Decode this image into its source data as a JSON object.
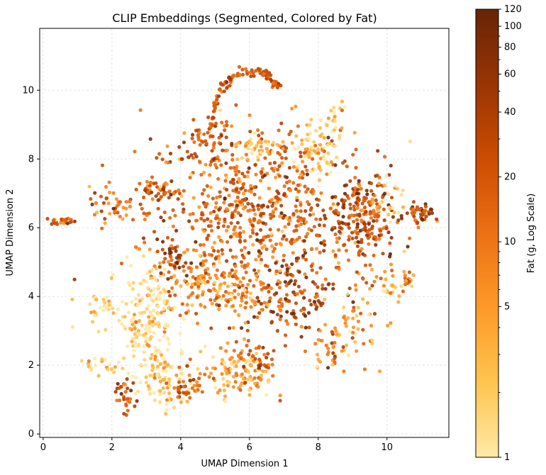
{
  "chart_data": {
    "type": "scatter",
    "title": "CLIP Embeddings (Segmented, Colored by Fat)",
    "xlabel": "UMAP Dimension 1",
    "ylabel": "UMAP Dimension 2",
    "xlim": [
      -0.1,
      11.8
    ],
    "ylim": [
      -0.1,
      11.8
    ],
    "x_ticks": [
      0,
      2,
      4,
      6,
      8,
      10
    ],
    "y_ticks": [
      0,
      2,
      4,
      6,
      8,
      10
    ],
    "grid": true,
    "colorbar": {
      "label": "Fat (g, Log Scale)",
      "scale": "log",
      "range": [
        1,
        120
      ],
      "tick_labels": [
        1,
        5,
        10,
        20,
        40,
        60,
        80,
        100,
        120
      ],
      "colors": [
        "#FFE9A8",
        "#FEC44F",
        "#FE9929",
        "#EC7014",
        "#CC4C02",
        "#993404",
        "#662506"
      ]
    },
    "clusters": [
      {
        "x": 6.0,
        "y": 6.5,
        "sx": 1.5,
        "sy": 1.3,
        "fat": 15,
        "n": 700
      },
      {
        "x": 9.3,
        "y": 6.2,
        "sx": 0.5,
        "sy": 0.7,
        "fat": 25,
        "n": 220
      },
      {
        "x": 7.3,
        "y": 4.0,
        "sx": 0.6,
        "sy": 0.6,
        "fat": 35,
        "n": 120
      },
      {
        "x": 5.0,
        "y": 4.3,
        "sx": 0.9,
        "sy": 0.5,
        "fat": 7,
        "n": 180
      },
      {
        "x": 3.0,
        "y": 3.4,
        "sx": 0.4,
        "sy": 0.8,
        "fat": 1.3,
        "n": 160
      },
      {
        "x": 3.5,
        "y": 1.6,
        "sx": 0.4,
        "sy": 0.4,
        "fat": 1.5,
        "n": 90
      },
      {
        "x": 5.7,
        "y": 1.8,
        "sx": 0.5,
        "sy": 0.4,
        "fat": 4,
        "n": 120
      },
      {
        "x": 2.4,
        "y": 1.1,
        "sx": 0.15,
        "sy": 0.25,
        "fat": 30,
        "n": 30
      },
      {
        "x": 4.2,
        "y": 1.4,
        "sx": 0.2,
        "sy": 0.3,
        "fat": 20,
        "n": 40
      },
      {
        "x": 3.3,
        "y": 7.1,
        "sx": 0.3,
        "sy": 0.15,
        "fat": 20,
        "n": 45
      },
      {
        "x": 3.7,
        "y": 5.1,
        "sx": 0.2,
        "sy": 0.2,
        "fat": 40,
        "n": 30
      },
      {
        "x": 2.0,
        "y": 6.7,
        "sx": 0.35,
        "sy": 0.3,
        "fat": 10,
        "n": 40
      },
      {
        "x": 0.6,
        "y": 6.2,
        "sx": 0.2,
        "sy": 0.05,
        "fat": 20,
        "n": 25
      },
      {
        "x": 11.0,
        "y": 6.4,
        "sx": 0.2,
        "sy": 0.15,
        "fat": 25,
        "n": 40
      },
      {
        "x": 10.6,
        "y": 4.5,
        "sx": 0.1,
        "sy": 0.15,
        "fat": 15,
        "n": 15
      },
      {
        "x": 7.9,
        "y": 8.2,
        "sx": 0.4,
        "sy": 0.3,
        "fat": 2,
        "n": 60
      },
      {
        "x": 6.2,
        "y": 8.3,
        "sx": 0.3,
        "sy": 0.2,
        "fat": 2,
        "n": 40
      },
      {
        "x": 4.8,
        "y": 8.5,
        "sx": 0.4,
        "sy": 0.3,
        "fat": 20,
        "n": 45
      },
      {
        "x": 8.4,
        "y": 2.4,
        "sx": 0.3,
        "sy": 0.3,
        "fat": 8,
        "n": 40
      },
      {
        "x": 9.2,
        "y": 3.5,
        "sx": 0.4,
        "sy": 0.6,
        "fat": 6,
        "n": 50
      },
      {
        "x": 1.7,
        "y": 3.7,
        "sx": 0.35,
        "sy": 0.3,
        "fat": 1.3,
        "n": 30
      },
      {
        "x": 1.6,
        "y": 2.0,
        "sx": 0.3,
        "sy": 0.15,
        "fat": 1.5,
        "n": 20
      },
      {
        "x": 10.1,
        "y": 4.3,
        "sx": 0.2,
        "sy": 0.3,
        "fat": 3,
        "n": 20
      },
      {
        "x": 8.4,
        "y": 9.0,
        "sx": 0.2,
        "sy": 0.4,
        "fat": 2,
        "n": 25
      },
      {
        "x": 10.1,
        "y": 6.8,
        "sx": 0.3,
        "sy": 0.4,
        "fat": 3,
        "n": 30
      },
      {
        "x": 6.3,
        "y": 2.2,
        "sx": 0.3,
        "sy": 0.3,
        "fat": 20,
        "n": 30
      }
    ],
    "arc": {
      "points": [
        [
          4.9,
          8.9
        ],
        [
          5.0,
          9.6
        ],
        [
          5.3,
          10.2
        ],
        [
          5.8,
          10.55
        ],
        [
          6.4,
          10.55
        ],
        [
          6.8,
          10.1
        ]
      ],
      "fat": 20,
      "n": 110
    }
  }
}
